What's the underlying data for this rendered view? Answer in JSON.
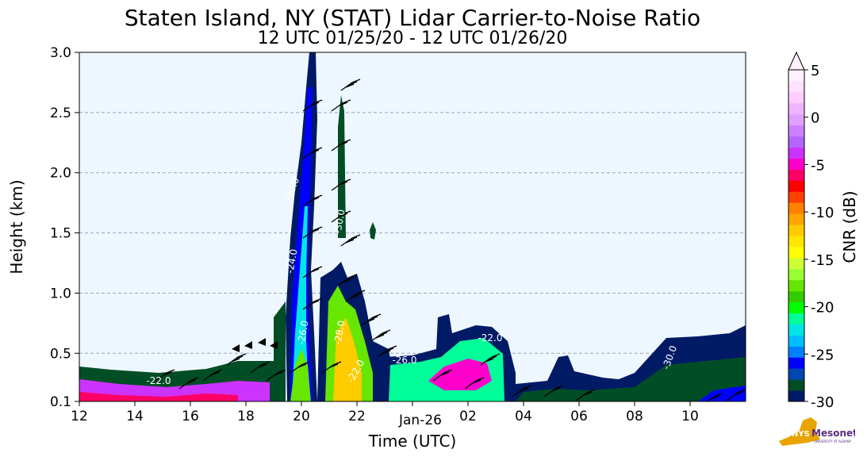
{
  "chart_data": {
    "type": "heatmap",
    "title": "Staten Island, NY (STAT) Lidar Carrier-to-Noise Ratio",
    "subtitle": "12 UTC 01/25/20 - 12 UTC 01/26/20",
    "xlabel": "Time (UTC)",
    "ylabel": "Height (km)",
    "x_ticks": [
      {
        "hour": 0,
        "label": "12"
      },
      {
        "hour": 2,
        "label": "14"
      },
      {
        "hour": 4,
        "label": "16"
      },
      {
        "hour": 6,
        "label": "18"
      },
      {
        "hour": 8,
        "label": "20"
      },
      {
        "hour": 10,
        "label": "22"
      },
      {
        "hour": 14,
        "label": "02"
      },
      {
        "hour": 16,
        "label": "04"
      },
      {
        "hour": 18,
        "label": "06"
      },
      {
        "hour": 20,
        "label": "08"
      },
      {
        "hour": 22,
        "label": "10"
      }
    ],
    "date_label": {
      "hour": 12,
      "label": "Jan-26"
    },
    "xlim": [
      0,
      24
    ],
    "y_ticks": [
      {
        "value": 0.1,
        "label": "0.1"
      },
      {
        "value": 0.5,
        "label": "0.5"
      },
      {
        "value": 1.0,
        "label": "1.0"
      },
      {
        "value": 1.5,
        "label": "1.5"
      },
      {
        "value": 2.0,
        "label": "2.0"
      },
      {
        "value": 2.5,
        "label": "2.5"
      },
      {
        "value": 3.0,
        "label": "3.0"
      }
    ],
    "ylim": [
      0.1,
      3.0
    ],
    "grid": "horizontal dashed",
    "colorbar": {
      "label": "CNR (dB)",
      "range": [
        -30,
        5
      ],
      "ticks": [
        "5",
        "0",
        "-5",
        "-10",
        "-15",
        "-20",
        "-25",
        "-30"
      ],
      "tick_values": [
        5,
        0,
        -5,
        -10,
        -15,
        -20,
        -25,
        -30
      ],
      "extend": "max",
      "colors": [
        "#001a66",
        "#004d26",
        "#0047b3",
        "#0000ff",
        "#0080ff",
        "#00bfff",
        "#00e6e6",
        "#00ff99",
        "#00ff00",
        "#33cc00",
        "#66e600",
        "#99ff33",
        "#ccff33",
        "#ffff00",
        "#ffe600",
        "#ffcc00",
        "#ffa500",
        "#ff8000",
        "#ff4000",
        "#ff0000",
        "#ff0066",
        "#ff00cc",
        "#cc33ff",
        "#b266ff",
        "#cc80ff",
        "#e0a0ff",
        "#f0b3ff",
        "#ffccff",
        "#ffe0ff",
        "#fff0ff"
      ]
    },
    "contour_labels": [
      "-30.0",
      "-22.0",
      "-26.0",
      "-30.0",
      "-30.0",
      "-24.0",
      "-26.0",
      "-28.0",
      "-22.0",
      "-22.0"
    ]
  },
  "logo": {
    "text": "Mesonet",
    "badge": "NYS",
    "sub": "UNIVERSITY AT ALBANY"
  }
}
